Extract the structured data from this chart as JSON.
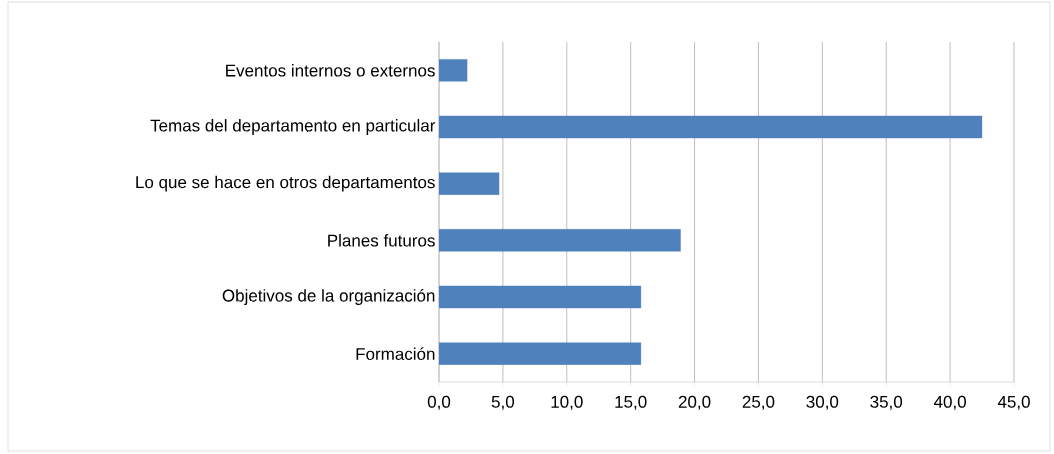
{
  "chart_data": {
    "type": "bar",
    "orientation": "horizontal",
    "categories": [
      "Eventos internos o externos",
      "Temas del departamento en particular",
      "Lo que se hace en otros departamentos",
      "Planes futuros",
      "Objetivos de la organización",
      "Formación"
    ],
    "values": [
      2.2,
      42.5,
      4.7,
      18.9,
      15.8,
      15.8
    ],
    "color": "#4f81bd",
    "xlim": [
      0,
      45
    ],
    "xticks": [
      {
        "value": 0,
        "label": "0,0"
      },
      {
        "value": 5,
        "label": "5,0"
      },
      {
        "value": 10,
        "label": "10,0"
      },
      {
        "value": 15,
        "label": "15,0"
      },
      {
        "value": 20,
        "label": "20,0"
      },
      {
        "value": 25,
        "label": "25,0"
      },
      {
        "value": 30,
        "label": "30,0"
      },
      {
        "value": 35,
        "label": "35,0"
      },
      {
        "value": 40,
        "label": "40,0"
      },
      {
        "value": 45,
        "label": "45,0"
      }
    ],
    "grid": "x"
  }
}
